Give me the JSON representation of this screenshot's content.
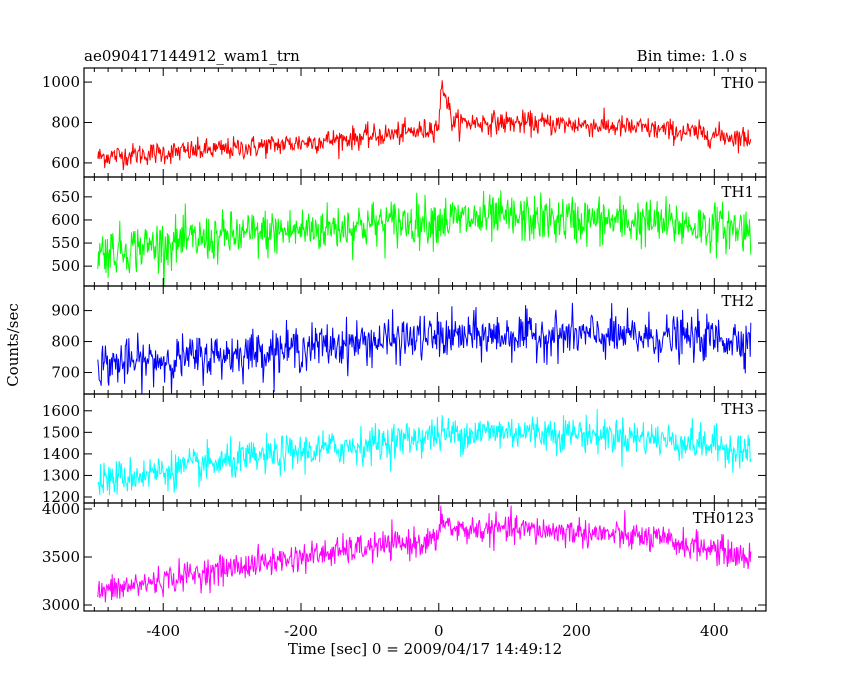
{
  "header": {
    "title": "ae090417144912_wam1_trn",
    "bin_time": "Bin time: 1.0 s"
  },
  "axes": {
    "xlabel": "Time [sec] 0 = 2009/04/17 14:49:12",
    "ylabel": "Counts/sec",
    "xlim": [
      -515,
      475
    ],
    "xticks": [
      -400,
      -200,
      0,
      200,
      400
    ]
  },
  "chart_data": {
    "type": "line",
    "title": "ae090417144912_wam1_trn",
    "xlabel": "Time [sec] 0 = 2009/04/17 14:49:12",
    "ylabel": "Counts/sec",
    "xlim": [
      -515,
      475
    ],
    "bin_time_s": 1.0,
    "x_range": [
      -495,
      453
    ],
    "panels": [
      {
        "name": "TH0",
        "color": "#ff0000",
        "ylim": [
          560,
          1040
        ],
        "yticks": [
          600,
          800,
          1000
        ],
        "trend_x": [
          -495,
          -400,
          -300,
          -200,
          -100,
          -20,
          0,
          5,
          20,
          100,
          200,
          300,
          400,
          453
        ],
        "trend_y": [
          630,
          650,
          670,
          700,
          730,
          760,
          790,
          1000,
          800,
          800,
          790,
          770,
          740,
          720
        ],
        "noise_sd": 28
      },
      {
        "name": "TH1",
        "color": "#00ff00",
        "ylim": [
          470,
          680
        ],
        "yticks": [
          500,
          550,
          600,
          650
        ],
        "trend_x": [
          -495,
          -400,
          -300,
          -200,
          -100,
          0,
          100,
          200,
          300,
          400,
          453
        ],
        "trend_y": [
          530,
          548,
          565,
          578,
          590,
          600,
          603,
          600,
          595,
          585,
          580
        ],
        "noise_sd": 26
      },
      {
        "name": "TH2",
        "color": "#0000ff",
        "ylim": [
          650,
          960
        ],
        "yticks": [
          700,
          800,
          900
        ],
        "trend_x": [
          -495,
          -400,
          -300,
          -200,
          -100,
          0,
          100,
          200,
          300,
          400,
          453
        ],
        "trend_y": [
          725,
          740,
          760,
          780,
          800,
          815,
          820,
          820,
          815,
          810,
          805
        ],
        "noise_sd": 36
      },
      {
        "name": "TH3",
        "color": "#00ffff",
        "ylim": [
          1200,
          1650
        ],
        "yticks": [
          1200,
          1300,
          1400,
          1500,
          1600
        ],
        "trend_x": [
          -495,
          -400,
          -300,
          -200,
          -100,
          0,
          100,
          200,
          300,
          400,
          453
        ],
        "trend_y": [
          1275,
          1320,
          1365,
          1410,
          1445,
          1490,
          1505,
          1495,
          1475,
          1440,
          1410
        ],
        "noise_sd": 42
      },
      {
        "name": "TH0123",
        "color": "#ff00ff",
        "ylim": [
          3000,
          4000
        ],
        "yticks": [
          3000,
          3500,
          4000
        ],
        "trend_x": [
          -495,
          -400,
          -300,
          -200,
          -100,
          -20,
          0,
          5,
          20,
          100,
          200,
          300,
          400,
          453
        ],
        "trend_y": [
          3130,
          3260,
          3390,
          3500,
          3600,
          3660,
          3680,
          3920,
          3780,
          3790,
          3760,
          3700,
          3580,
          3480
        ],
        "noise_sd": 75
      }
    ]
  }
}
